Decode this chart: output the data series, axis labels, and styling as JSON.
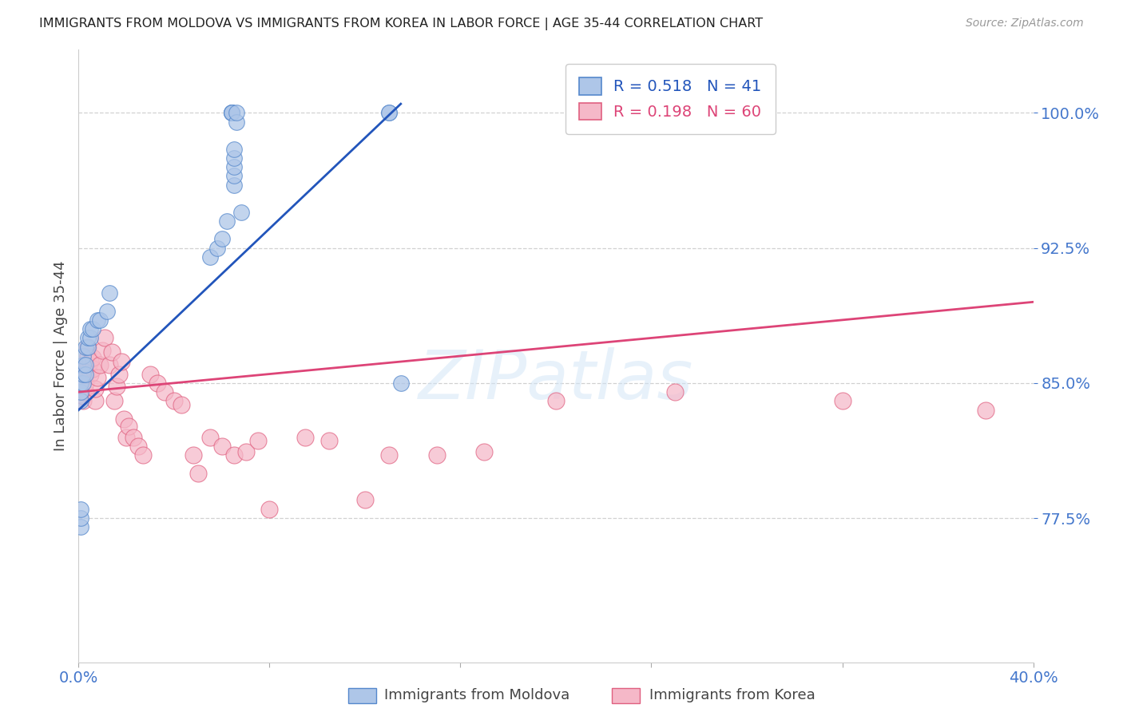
{
  "title": "IMMIGRANTS FROM MOLDOVA VS IMMIGRANTS FROM KOREA IN LABOR FORCE | AGE 35-44 CORRELATION CHART",
  "source": "Source: ZipAtlas.com",
  "xlabel_moldova": "Immigrants from Moldova",
  "xlabel_korea": "Immigrants from Korea",
  "ylabel": "In Labor Force | Age 35-44",
  "watermark": "ZIPatlas",
  "xlim": [
    0.0,
    0.4
  ],
  "ylim": [
    0.695,
    1.035
  ],
  "yticks": [
    0.775,
    0.85,
    0.925,
    1.0
  ],
  "ytick_labels": [
    "77.5%",
    "85.0%",
    "92.5%",
    "100.0%"
  ],
  "xtick_positions": [
    0.0,
    0.08,
    0.16,
    0.24,
    0.32,
    0.4
  ],
  "moldova_color": "#aec6e8",
  "korea_color": "#f5b8c8",
  "moldova_edge_color": "#5588cc",
  "korea_edge_color": "#e06080",
  "moldova_line_color": "#2255bb",
  "korea_line_color": "#dd4477",
  "moldova_R": 0.518,
  "moldova_N": 41,
  "korea_R": 0.198,
  "korea_N": 60,
  "moldova_scatter_x": [
    0.001,
    0.001,
    0.001,
    0.001,
    0.001,
    0.001,
    0.002,
    0.002,
    0.002,
    0.002,
    0.003,
    0.003,
    0.003,
    0.004,
    0.004,
    0.005,
    0.005,
    0.006,
    0.008,
    0.009,
    0.012,
    0.013,
    0.055,
    0.058,
    0.06,
    0.062,
    0.064,
    0.064,
    0.064,
    0.064,
    0.065,
    0.065,
    0.065,
    0.065,
    0.065,
    0.066,
    0.066,
    0.068,
    0.13,
    0.13,
    0.135
  ],
  "moldova_scatter_y": [
    0.77,
    0.775,
    0.78,
    0.84,
    0.845,
    0.85,
    0.85,
    0.855,
    0.86,
    0.865,
    0.855,
    0.86,
    0.87,
    0.87,
    0.875,
    0.875,
    0.88,
    0.88,
    0.885,
    0.885,
    0.89,
    0.9,
    0.92,
    0.925,
    0.93,
    0.94,
    1.0,
    1.0,
    1.0,
    1.0,
    0.96,
    0.965,
    0.97,
    0.975,
    0.98,
    0.995,
    1.0,
    0.945,
    1.0,
    1.0,
    0.85
  ],
  "korea_scatter_x": [
    0.001,
    0.001,
    0.001,
    0.001,
    0.001,
    0.002,
    0.002,
    0.002,
    0.002,
    0.003,
    0.003,
    0.003,
    0.004,
    0.004,
    0.004,
    0.005,
    0.005,
    0.006,
    0.006,
    0.007,
    0.007,
    0.008,
    0.009,
    0.01,
    0.011,
    0.013,
    0.014,
    0.015,
    0.016,
    0.017,
    0.018,
    0.019,
    0.02,
    0.021,
    0.023,
    0.025,
    0.027,
    0.03,
    0.033,
    0.036,
    0.04,
    0.043,
    0.048,
    0.05,
    0.055,
    0.06,
    0.065,
    0.07,
    0.075,
    0.08,
    0.095,
    0.105,
    0.12,
    0.13,
    0.15,
    0.17,
    0.2,
    0.25,
    0.32,
    0.38
  ],
  "korea_scatter_y": [
    0.85,
    0.852,
    0.854,
    0.856,
    0.858,
    0.84,
    0.843,
    0.848,
    0.852,
    0.845,
    0.85,
    0.855,
    0.86,
    0.865,
    0.87,
    0.855,
    0.862,
    0.858,
    0.864,
    0.84,
    0.847,
    0.853,
    0.86,
    0.868,
    0.875,
    0.86,
    0.867,
    0.84,
    0.848,
    0.855,
    0.862,
    0.83,
    0.82,
    0.826,
    0.82,
    0.815,
    0.81,
    0.855,
    0.85,
    0.845,
    0.84,
    0.838,
    0.81,
    0.8,
    0.82,
    0.815,
    0.81,
    0.812,
    0.818,
    0.78,
    0.82,
    0.818,
    0.785,
    0.81,
    0.81,
    0.812,
    0.84,
    0.845,
    0.84,
    0.835
  ],
  "title_color": "#222222",
  "axis_label_color": "#444444",
  "right_tick_color": "#4477cc",
  "grid_color": "#cccccc",
  "background_color": "#ffffff"
}
